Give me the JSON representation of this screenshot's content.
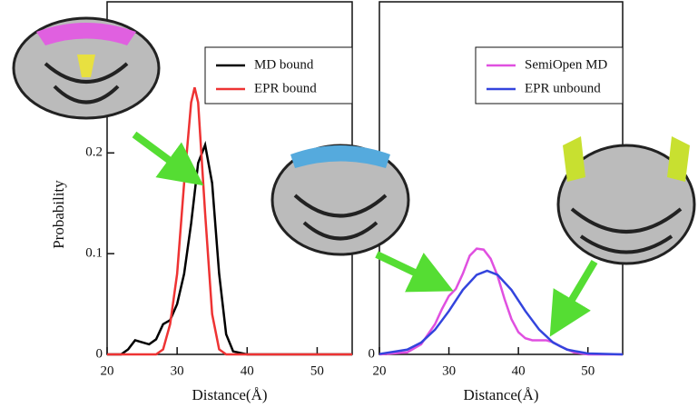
{
  "chart_data": [
    {
      "type": "line",
      "x_label": "Distance(Å)",
      "y_label": "Probability",
      "xlim": [
        20,
        55
      ],
      "ylim": [
        0,
        0.35
      ],
      "xticks": [
        20,
        30,
        40,
        50
      ],
      "yticks": [
        0,
        0.1,
        0.2
      ],
      "legend": "upper right",
      "series": [
        {
          "name": "MD bound",
          "color": "#000000",
          "x": [
            20,
            22,
            23,
            24,
            25,
            26,
            27,
            28,
            29,
            30,
            31,
            32,
            33,
            34,
            35,
            36,
            37,
            38,
            40,
            55
          ],
          "values": [
            0,
            0,
            0.005,
            0.014,
            0.012,
            0.01,
            0.015,
            0.03,
            0.034,
            0.05,
            0.08,
            0.13,
            0.19,
            0.208,
            0.17,
            0.08,
            0.02,
            0.003,
            0,
            0
          ]
        },
        {
          "name": "EPR bound",
          "color": "#ee3333",
          "x": [
            20,
            27,
            28,
            29,
            30,
            31,
            32,
            32.5,
            33,
            34,
            35,
            36,
            37,
            55
          ],
          "values": [
            0,
            0,
            0.005,
            0.03,
            0.08,
            0.17,
            0.25,
            0.265,
            0.25,
            0.14,
            0.04,
            0.005,
            0,
            0
          ]
        }
      ]
    },
    {
      "type": "line",
      "x_label": "Distance(Å)",
      "xlim": [
        20,
        55
      ],
      "ylim": [
        0,
        0.35
      ],
      "xticks": [
        20,
        30,
        40,
        50
      ],
      "yticks": [
        0
      ],
      "legend": "upper right",
      "series": [
        {
          "name": "SemiOpen MD",
          "color": "#e050e0",
          "x": [
            20,
            24,
            26,
            28,
            29,
            30,
            31,
            32,
            33,
            34,
            35,
            36,
            37,
            38,
            39,
            40,
            41,
            42,
            43,
            44,
            45,
            46,
            48,
            50,
            55
          ],
          "values": [
            0,
            0.002,
            0.01,
            0.03,
            0.045,
            0.058,
            0.065,
            0.08,
            0.098,
            0.105,
            0.104,
            0.095,
            0.078,
            0.055,
            0.035,
            0.022,
            0.016,
            0.014,
            0.014,
            0.014,
            0.012,
            0.008,
            0.002,
            0,
            0
          ]
        },
        {
          "name": "EPR unbound",
          "color": "#3344dd",
          "x": [
            20,
            24,
            26,
            28,
            30,
            32,
            34,
            35.5,
            37,
            39,
            41,
            43,
            45,
            47,
            50,
            55
          ],
          "values": [
            0.0004,
            0.0047,
            0.0117,
            0.0245,
            0.043,
            0.064,
            0.079,
            0.083,
            0.079,
            0.064,
            0.043,
            0.0245,
            0.0117,
            0.0047,
            0.0009,
            0
          ]
        }
      ]
    }
  ]
}
